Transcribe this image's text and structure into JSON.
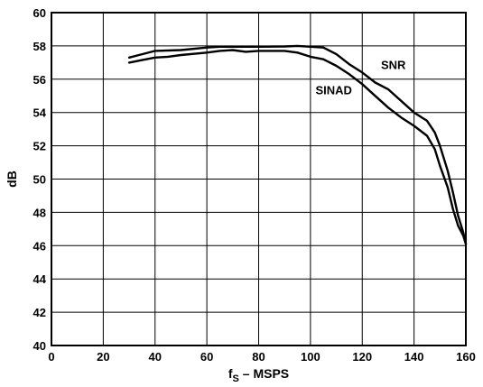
{
  "chart_data": {
    "type": "line",
    "title": "",
    "xlabel": {
      "main": "f",
      "sub": "S",
      "rest": " – MSPS"
    },
    "ylabel": "dB",
    "xlim": [
      0,
      160
    ],
    "ylim": [
      40,
      60
    ],
    "xticks": [
      "0",
      "20",
      "40",
      "60",
      "80",
      "100",
      "120",
      "140",
      "160"
    ],
    "yticks": [
      "40",
      "42",
      "44",
      "46",
      "48",
      "50",
      "52",
      "54",
      "56",
      "58",
      "60"
    ],
    "grid": true,
    "series": [
      {
        "name": "SNR",
        "x": [
          30,
          35,
          40,
          50,
          60,
          65,
          70,
          80,
          90,
          95,
          100,
          105,
          110,
          115,
          120,
          125,
          130,
          135,
          140,
          143,
          145,
          148,
          150,
          153,
          155,
          157,
          159,
          160
        ],
        "values": [
          57.3,
          57.5,
          57.7,
          57.75,
          57.9,
          57.95,
          57.95,
          57.95,
          57.97,
          58.0,
          57.95,
          57.9,
          57.5,
          56.9,
          56.4,
          55.8,
          55.4,
          54.7,
          54.0,
          53.7,
          53.5,
          52.8,
          52.0,
          50.5,
          49.2,
          47.8,
          46.8,
          46.1
        ]
      },
      {
        "name": "SINAD",
        "x": [
          30,
          35,
          40,
          45,
          50,
          60,
          65,
          70,
          75,
          80,
          90,
          95,
          100,
          105,
          110,
          115,
          120,
          125,
          130,
          135,
          140,
          145,
          148,
          150,
          153,
          155,
          157,
          159,
          160
        ],
        "values": [
          57.0,
          57.15,
          57.3,
          57.35,
          57.45,
          57.6,
          57.7,
          57.75,
          57.65,
          57.7,
          57.7,
          57.6,
          57.35,
          57.2,
          56.8,
          56.3,
          55.7,
          55.0,
          54.3,
          53.7,
          53.2,
          52.6,
          51.8,
          50.8,
          49.5,
          48.2,
          47.2,
          46.6,
          46.1
        ]
      }
    ]
  }
}
